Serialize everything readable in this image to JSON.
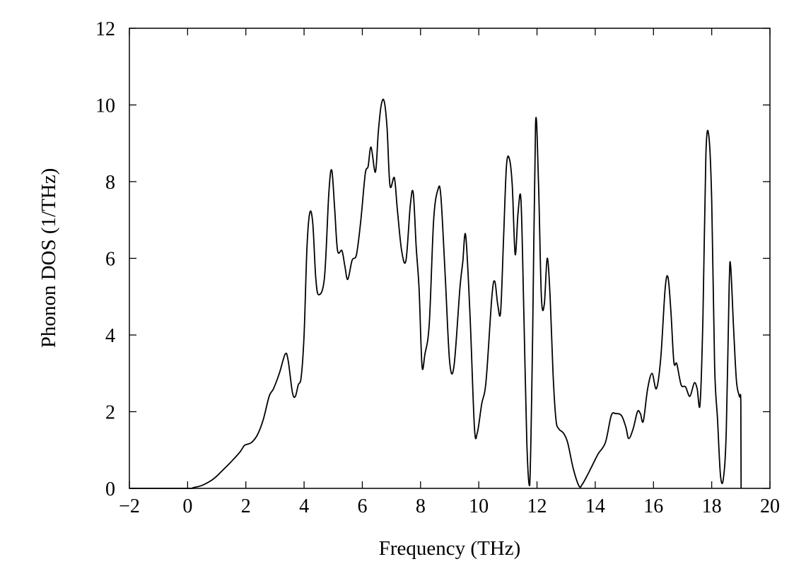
{
  "chart_data": {
    "type": "line",
    "title": "",
    "xlabel": "Frequency (THz)",
    "ylabel": "Phonon DOS (1/THz)",
    "xlim": [
      -2,
      20
    ],
    "ylim": [
      0,
      12
    ],
    "xticks": [
      -2,
      0,
      2,
      4,
      6,
      8,
      10,
      12,
      14,
      16,
      18,
      20
    ],
    "xtick_labels": [
      "−2",
      "0",
      "2",
      "4",
      "6",
      "8",
      "10",
      "12",
      "14",
      "16",
      "18",
      "20"
    ],
    "yticks": [
      0,
      2,
      4,
      6,
      8,
      10,
      12
    ],
    "ytick_labels": [
      "0",
      "2",
      "4",
      "6",
      "8",
      "10",
      "12"
    ],
    "grid": false,
    "legend": "none",
    "line_color": "#000000",
    "series": [
      {
        "x": [
          -2,
          0,
          0.2,
          0.5,
          0.8,
          1.0,
          1.2,
          1.4,
          1.6,
          1.8,
          1.95,
          2.05,
          2.2,
          2.4,
          2.6,
          2.8,
          2.95,
          3.15,
          3.35,
          3.45,
          3.6,
          3.7,
          3.8,
          3.9,
          4.0,
          4.1,
          4.2,
          4.3,
          4.4,
          4.5,
          4.7,
          4.85,
          4.95,
          5.05,
          5.15,
          5.3,
          5.4,
          5.5,
          5.65,
          5.8,
          5.95,
          6.1,
          6.2,
          6.3,
          6.45,
          6.55,
          6.65,
          6.75,
          6.85,
          6.95,
          7.1,
          7.2,
          7.35,
          7.5,
          7.65,
          7.75,
          7.85,
          7.95,
          8.05,
          8.15,
          8.3,
          8.45,
          8.6,
          8.7,
          8.85,
          9.0,
          9.15,
          9.35,
          9.45,
          9.55,
          9.7,
          9.85,
          9.95,
          10.1,
          10.25,
          10.45,
          10.55,
          10.65,
          10.75,
          10.85,
          10.95,
          11.05,
          11.15,
          11.25,
          11.35,
          11.45,
          11.55,
          11.65,
          11.75,
          11.85,
          11.95,
          12.05,
          12.15,
          12.25,
          12.35,
          12.45,
          12.55,
          12.65,
          12.75,
          12.9,
          13.05,
          13.25,
          13.45,
          13.55,
          13.7,
          13.9,
          14.1,
          14.35,
          14.55,
          14.7,
          14.9,
          15.05,
          15.15,
          15.3,
          15.45,
          15.55,
          15.65,
          15.8,
          15.95,
          16.1,
          16.25,
          16.4,
          16.5,
          16.6,
          16.7,
          16.8,
          16.95,
          17.1,
          17.25,
          17.4,
          17.5,
          17.6,
          17.7,
          17.8,
          17.9,
          18.0,
          18.1,
          18.2,
          18.3,
          18.4,
          18.5,
          18.6,
          18.65,
          18.75,
          18.85,
          18.95,
          19.0,
          19.01
        ],
        "y": [
          0,
          0,
          0.02,
          0.08,
          0.2,
          0.32,
          0.47,
          0.62,
          0.78,
          0.95,
          1.12,
          1.15,
          1.2,
          1.4,
          1.8,
          2.4,
          2.6,
          3.0,
          3.5,
          3.35,
          2.5,
          2.4,
          2.7,
          2.9,
          4.0,
          6.3,
          7.2,
          6.9,
          5.5,
          5.05,
          5.5,
          7.7,
          8.3,
          7.3,
          6.2,
          6.2,
          5.8,
          5.45,
          5.95,
          6.1,
          7.0,
          8.2,
          8.4,
          8.9,
          8.25,
          9.3,
          10.0,
          10.1,
          9.4,
          7.9,
          8.1,
          7.3,
          6.2,
          5.95,
          7.4,
          7.7,
          6.3,
          5.2,
          3.2,
          3.5,
          4.3,
          7.0,
          7.8,
          7.6,
          5.5,
          3.3,
          3.2,
          5.2,
          5.9,
          6.6,
          4.5,
          1.6,
          1.45,
          2.2,
          2.8,
          5.0,
          5.4,
          4.8,
          4.6,
          6.5,
          8.4,
          8.6,
          7.9,
          6.1,
          7.2,
          7.5,
          4.5,
          1.2,
          0.08,
          4.0,
          9.5,
          8.0,
          5.0,
          4.8,
          6.0,
          5.0,
          3.0,
          1.8,
          1.55,
          1.45,
          1.2,
          0.5,
          0.05,
          0.1,
          0.3,
          0.6,
          0.9,
          1.2,
          1.9,
          1.95,
          1.9,
          1.6,
          1.3,
          1.55,
          2.0,
          1.95,
          1.75,
          2.6,
          3.0,
          2.6,
          3.4,
          5.2,
          5.5,
          4.6,
          3.3,
          3.25,
          2.7,
          2.65,
          2.4,
          2.75,
          2.6,
          2.2,
          4.5,
          8.7,
          9.2,
          7.5,
          3.2,
          1.8,
          0.35,
          0.25,
          1.5,
          5.3,
          5.8,
          4.2,
          2.8,
          2.4,
          2.25,
          0
        ]
      }
    ]
  }
}
